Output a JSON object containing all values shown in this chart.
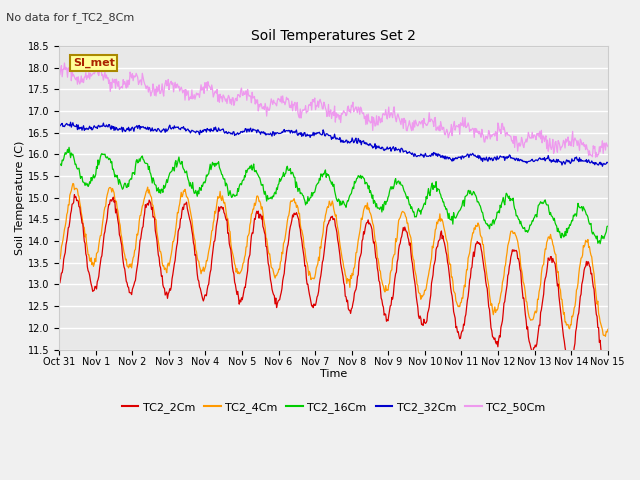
{
  "title": "Soil Temperatures Set 2",
  "note": "No data for f_TC2_8Cm",
  "xlabel": "Time",
  "ylabel": "Soil Temperature (C)",
  "ylim": [
    11.5,
    18.5
  ],
  "yticks": [
    11.5,
    12.0,
    12.5,
    13.0,
    13.5,
    14.0,
    14.5,
    15.0,
    15.5,
    16.0,
    16.5,
    17.0,
    17.5,
    18.0,
    18.5
  ],
  "xtick_labels": [
    "Oct 31",
    "Nov 1",
    "Nov 2",
    "Nov 3",
    "Nov 4",
    "Nov 5",
    "Nov 6",
    "Nov 7",
    "Nov 8",
    "Nov 9",
    "Nov 10",
    "Nov 11",
    "Nov 12",
    "Nov 13",
    "Nov 14",
    "Nov 15"
  ],
  "colors": {
    "TC2_2Cm": "#dd0000",
    "TC2_4Cm": "#ff9900",
    "TC2_16Cm": "#00cc00",
    "TC2_32Cm": "#0000cc",
    "TC2_50Cm": "#ee99ee"
  },
  "annotation_text": "SI_met",
  "annotation_color": "#aa2200",
  "annotation_bg": "#ffff99",
  "annotation_border": "#aa8800",
  "fig_bg": "#f0f0f0",
  "plot_bg": "#e8e8e8"
}
